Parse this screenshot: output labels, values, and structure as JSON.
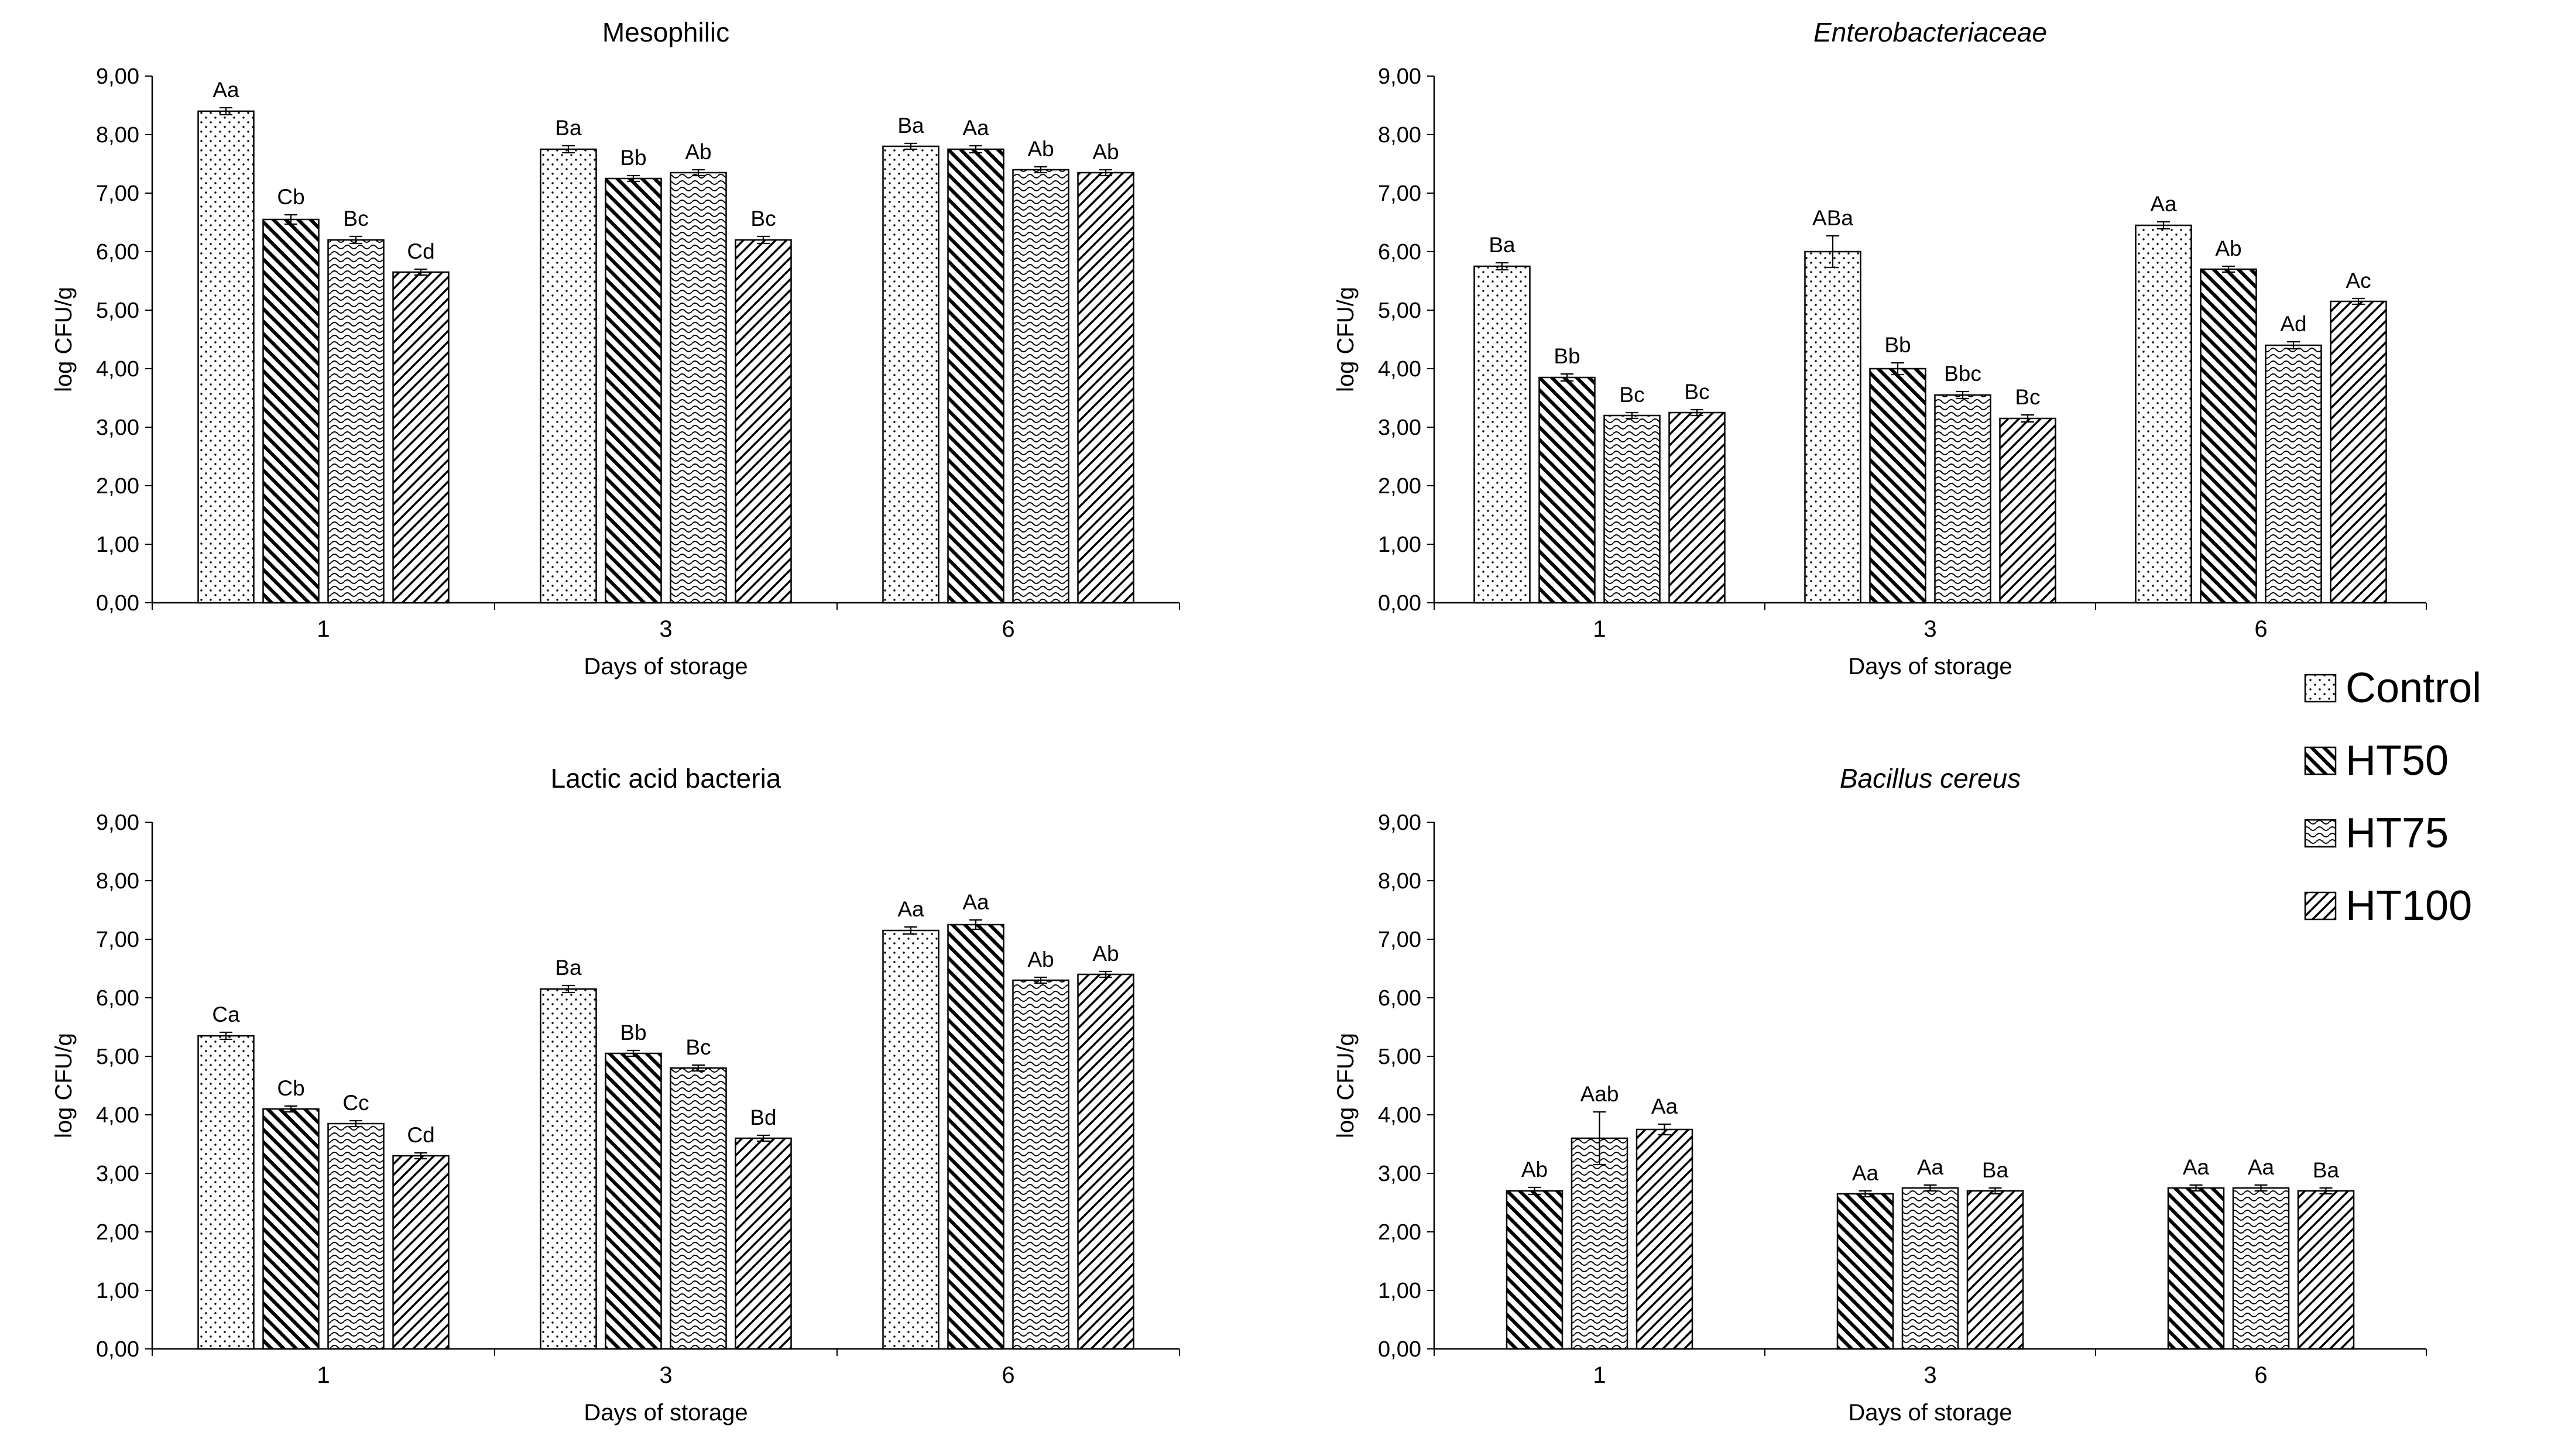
{
  "figure": {
    "background": "#ffffff",
    "axis_color": "#000000",
    "bar_fill": "#ffffff",
    "bar_border": "#000000"
  },
  "legend": {
    "items": [
      {
        "label": "Control",
        "pattern": "dots"
      },
      {
        "label": "HT50",
        "pattern": "diagonal-heavy"
      },
      {
        "label": "HT75",
        "pattern": "waves"
      },
      {
        "label": "HT100",
        "pattern": "diagonal-light"
      }
    ]
  },
  "chart_data": [
    {
      "type": "bar",
      "title": "Mesophilic",
      "italic_title": false,
      "xlabel": "Days of storage",
      "ylabel": "log CFU/g",
      "ylim": [
        0,
        9
      ],
      "grid": false,
      "ytick_labels": [
        "0,00",
        "1,00",
        "2,00",
        "3,00",
        "4,00",
        "5,00",
        "6,00",
        "7,00",
        "8,00",
        "9,00"
      ],
      "categories": [
        "1",
        "3",
        "6"
      ],
      "series": [
        {
          "name": "Control",
          "pattern": "dots",
          "values": [
            8.4,
            7.75,
            7.8
          ],
          "errors": [
            0.06,
            0.06,
            0.05
          ],
          "labels": [
            "Aa",
            "Ba",
            "Ba"
          ]
        },
        {
          "name": "HT50",
          "pattern": "diagonal-heavy",
          "values": [
            6.55,
            7.25,
            7.75
          ],
          "errors": [
            0.08,
            0.05,
            0.06
          ],
          "labels": [
            "Cb",
            "Bb",
            "Aa"
          ]
        },
        {
          "name": "HT75",
          "pattern": "waves",
          "values": [
            6.2,
            7.35,
            7.4
          ],
          "errors": [
            0.06,
            0.05,
            0.05
          ],
          "labels": [
            "Bc",
            "Ab",
            "Ab"
          ]
        },
        {
          "name": "HT100",
          "pattern": "diagonal-light",
          "values": [
            5.65,
            6.2,
            7.35
          ],
          "errors": [
            0.05,
            0.06,
            0.05
          ],
          "labels": [
            "Cd",
            "Bc",
            "Ab"
          ]
        }
      ]
    },
    {
      "type": "bar",
      "title": "Enterobacteriaceae",
      "italic_title": true,
      "xlabel": "Days of storage",
      "ylabel": "log CFU/g",
      "ylim": [
        0,
        9
      ],
      "grid": false,
      "ytick_labels": [
        "0,00",
        "1,00",
        "2,00",
        "3,00",
        "4,00",
        "5,00",
        "6,00",
        "7,00",
        "8,00",
        "9,00"
      ],
      "categories": [
        "1",
        "3",
        "6"
      ],
      "series": [
        {
          "name": "Control",
          "pattern": "dots",
          "values": [
            5.75,
            6.0,
            6.45
          ],
          "errors": [
            0.06,
            0.27,
            0.06
          ],
          "labels": [
            "Ba",
            "ABa",
            "Aa"
          ]
        },
        {
          "name": "HT50",
          "pattern": "diagonal-heavy",
          "values": [
            3.85,
            4.0,
            5.7
          ],
          "errors": [
            0.06,
            0.1,
            0.05
          ],
          "labels": [
            "Bb",
            "Bb",
            "Ab"
          ]
        },
        {
          "name": "HT75",
          "pattern": "waves",
          "values": [
            3.2,
            3.55,
            4.4
          ],
          "errors": [
            0.05,
            0.06,
            0.06
          ],
          "labels": [
            "Bc",
            "Bbc",
            "Ad"
          ]
        },
        {
          "name": "HT100",
          "pattern": "diagonal-light",
          "values": [
            3.25,
            3.15,
            5.15
          ],
          "errors": [
            0.05,
            0.06,
            0.05
          ],
          "labels": [
            "Bc",
            "Bc",
            "Ac"
          ]
        }
      ]
    },
    {
      "type": "bar",
      "title": "Lactic acid bacteria",
      "italic_title": false,
      "xlabel": "Days of storage",
      "ylabel": "log CFU/g",
      "ylim": [
        0,
        9
      ],
      "grid": false,
      "ytick_labels": [
        "0,00",
        "1,00",
        "2,00",
        "3,00",
        "4,00",
        "5,00",
        "6,00",
        "7,00",
        "8,00",
        "9,00"
      ],
      "categories": [
        "1",
        "3",
        "6"
      ],
      "series": [
        {
          "name": "Control",
          "pattern": "dots",
          "values": [
            5.35,
            6.15,
            7.15
          ],
          "errors": [
            0.06,
            0.06,
            0.06
          ],
          "labels": [
            "Ca",
            "Ba",
            "Aa"
          ]
        },
        {
          "name": "HT50",
          "pattern": "diagonal-heavy",
          "values": [
            4.1,
            5.05,
            7.25
          ],
          "errors": [
            0.05,
            0.05,
            0.08
          ],
          "labels": [
            "Cb",
            "Bb",
            "Aa"
          ]
        },
        {
          "name": "HT75",
          "pattern": "waves",
          "values": [
            3.85,
            4.8,
            6.3
          ],
          "errors": [
            0.05,
            0.05,
            0.05
          ],
          "labels": [
            "Cc",
            "Bc",
            "Ab"
          ]
        },
        {
          "name": "HT100",
          "pattern": "diagonal-light",
          "values": [
            3.3,
            3.6,
            6.4
          ],
          "errors": [
            0.05,
            0.05,
            0.05
          ],
          "labels": [
            "Cd",
            "Bd",
            "Ab"
          ]
        }
      ]
    },
    {
      "type": "bar",
      "title": "Bacillus cereus",
      "italic_title": true,
      "xlabel": "Days of storage",
      "ylabel": "log CFU/g",
      "ylim": [
        0,
        9
      ],
      "grid": false,
      "ytick_labels": [
        "0,00",
        "1,00",
        "2,00",
        "3,00",
        "4,00",
        "5,00",
        "6,00",
        "7,00",
        "8,00",
        "9,00"
      ],
      "categories": [
        "1",
        "3",
        "6"
      ],
      "series": [
        {
          "name": "HT50",
          "pattern": "diagonal-heavy",
          "values": [
            2.7,
            2.65,
            2.75
          ],
          "errors": [
            0.06,
            0.05,
            0.05
          ],
          "labels": [
            "Ab",
            "Aa",
            "Aa"
          ]
        },
        {
          "name": "HT75",
          "pattern": "waves",
          "values": [
            3.6,
            2.75,
            2.75
          ],
          "errors": [
            0.45,
            0.05,
            0.05
          ],
          "labels": [
            "Aab",
            "Aa",
            "Aa"
          ]
        },
        {
          "name": "HT100",
          "pattern": "diagonal-light",
          "values": [
            3.75,
            2.7,
            2.7
          ],
          "errors": [
            0.09,
            0.05,
            0.05
          ],
          "labels": [
            "Aa",
            "Ba",
            "Ba"
          ]
        }
      ]
    }
  ]
}
